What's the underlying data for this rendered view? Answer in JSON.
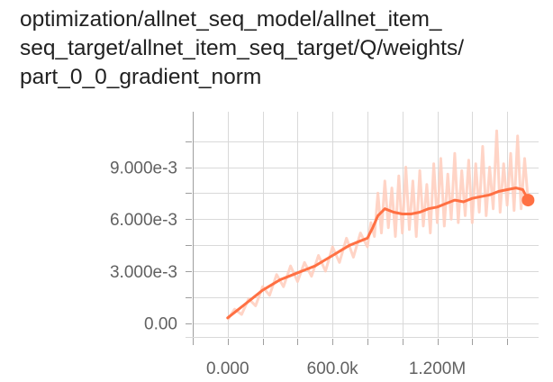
{
  "title_lines": [
    "optimization/allnet_seq_model/allnet_item_",
    "seq_target/allnet_item_seq_target/Q/weights/",
    "part_0_0_gradient_norm"
  ],
  "colors": {
    "line": "#ff7043",
    "raw": "#ffccbc",
    "grid": "#d9d9d9",
    "axis": "#9e9e9e"
  },
  "chart_data": {
    "type": "line",
    "title": "optimization/allnet_seq_model/allnet_item_seq_target/allnet_item_seq_target/Q/weights/part_0_0_gradient_norm",
    "xlabel": "",
    "ylabel": "",
    "xlim": [
      -200000,
      1780000
    ],
    "ylim": [
      -0.0008,
      0.0122
    ],
    "grid": true,
    "y_ticks": [
      {
        "value": 0.0,
        "label": "0.00"
      },
      {
        "value": 0.003,
        "label": "3.000e-3"
      },
      {
        "value": 0.006,
        "label": "6.000e-3"
      },
      {
        "value": 0.009,
        "label": "9.000e-3"
      }
    ],
    "x_ticks": [
      {
        "value": 0,
        "label": "0.000"
      },
      {
        "value": 600000,
        "label": "600.0k"
      },
      {
        "value": 1200000,
        "label": "1.200M"
      }
    ],
    "series": [
      {
        "kind": "smoothed",
        "x": [
          0,
          50000,
          100000,
          150000,
          200000,
          250000,
          300000,
          350000,
          400000,
          450000,
          500000,
          550000,
          600000,
          650000,
          700000,
          750000,
          800000,
          830000,
          860000,
          900000,
          950000,
          1000000,
          1050000,
          1100000,
          1150000,
          1200000,
          1250000,
          1300000,
          1350000,
          1400000,
          1450000,
          1500000,
          1550000,
          1600000,
          1650000,
          1690000,
          1720000
        ],
        "y": [
          0.0003,
          0.0007,
          0.0011,
          0.0015,
          0.0019,
          0.0022,
          0.0025,
          0.0027,
          0.0029,
          0.0031,
          0.0033,
          0.0036,
          0.0039,
          0.0042,
          0.0045,
          0.0047,
          0.0049,
          0.0055,
          0.0062,
          0.0066,
          0.0064,
          0.0063,
          0.0063,
          0.0064,
          0.0066,
          0.0067,
          0.0069,
          0.0071,
          0.007,
          0.0072,
          0.0073,
          0.0074,
          0.0076,
          0.0077,
          0.0078,
          0.0077,
          0.0071
        ]
      },
      {
        "kind": "raw",
        "x": [
          0,
          40000,
          80000,
          120000,
          160000,
          200000,
          240000,
          280000,
          320000,
          360000,
          400000,
          440000,
          480000,
          520000,
          560000,
          600000,
          640000,
          680000,
          720000,
          760000,
          800000,
          820000,
          840000,
          860000,
          880000,
          900000,
          920000,
          940000,
          960000,
          980000,
          1000000,
          1020000,
          1040000,
          1060000,
          1080000,
          1100000,
          1120000,
          1140000,
          1160000,
          1180000,
          1200000,
          1220000,
          1240000,
          1260000,
          1280000,
          1300000,
          1320000,
          1340000,
          1360000,
          1380000,
          1400000,
          1420000,
          1440000,
          1460000,
          1480000,
          1500000,
          1520000,
          1540000,
          1560000,
          1580000,
          1600000,
          1620000,
          1640000,
          1660000,
          1680000,
          1700000,
          1720000
        ],
        "y": [
          0.0002,
          0.0008,
          0.0005,
          0.0014,
          0.001,
          0.0021,
          0.0016,
          0.0028,
          0.0021,
          0.0033,
          0.0024,
          0.0035,
          0.0027,
          0.0039,
          0.003,
          0.0044,
          0.0035,
          0.0049,
          0.0038,
          0.0052,
          0.0044,
          0.0058,
          0.005,
          0.0075,
          0.0052,
          0.0082,
          0.0055,
          0.0078,
          0.005,
          0.0085,
          0.0052,
          0.009,
          0.0054,
          0.0082,
          0.005,
          0.0088,
          0.0056,
          0.008,
          0.0052,
          0.0092,
          0.0058,
          0.0095,
          0.0056,
          0.0086,
          0.006,
          0.0098,
          0.0058,
          0.0088,
          0.0062,
          0.0094,
          0.0058,
          0.0092,
          0.0064,
          0.0102,
          0.0062,
          0.009,
          0.0066,
          0.0111,
          0.0064,
          0.0092,
          0.0068,
          0.0098,
          0.0065,
          0.0108,
          0.0066,
          0.0095,
          0.007
        ]
      }
    ],
    "last_point": {
      "x": 1720000,
      "y": 0.0071
    }
  }
}
